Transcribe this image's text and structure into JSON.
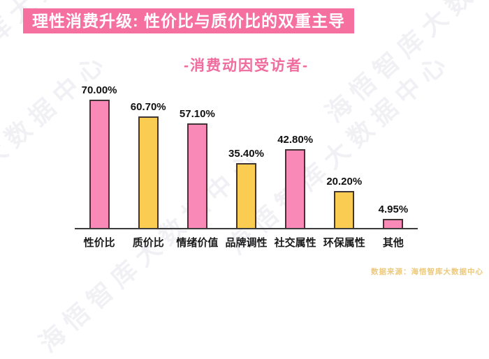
{
  "banner": {
    "title": "理性消费升级: 性价比与质价比的双重主导"
  },
  "subtitle": "-消费动因受访者-",
  "chart_data": {
    "type": "bar",
    "title": "-消费动因受访者-",
    "categories": [
      "性价比",
      "质价比",
      "情绪价值",
      "品牌调性",
      "社交属性",
      "环保属性",
      "其他"
    ],
    "values": [
      70.0,
      60.7,
      57.1,
      35.4,
      42.8,
      20.2,
      4.95
    ],
    "value_labels": [
      "70.00%",
      "60.70%",
      "57.10%",
      "35.40%",
      "42.80%",
      "20.20%",
      "4.95%"
    ],
    "bar_colors": [
      "#F98AB7",
      "#FACC52",
      "#F98AB7",
      "#FACC52",
      "#F98AB7",
      "#FACC52",
      "#F98AB7"
    ],
    "xlabel": "",
    "ylabel": "",
    "ylim": [
      0,
      75
    ],
    "grid": false,
    "legend": false,
    "value_label_position": "above-bar"
  },
  "watermark": {
    "text": "海悟智库大数据中心"
  },
  "source": "数据来源：海悟智库大数据中心",
  "colors": {
    "banner_bg": "#F5709F",
    "accent_pink": "#F06C9E",
    "bar_pink": "#F98AB7",
    "bar_yellow": "#FACC52",
    "bar_border": "#403434",
    "axis": "#3C3C3C",
    "source_text": "#E8BC5B",
    "watermark": "#9A9AB8"
  }
}
